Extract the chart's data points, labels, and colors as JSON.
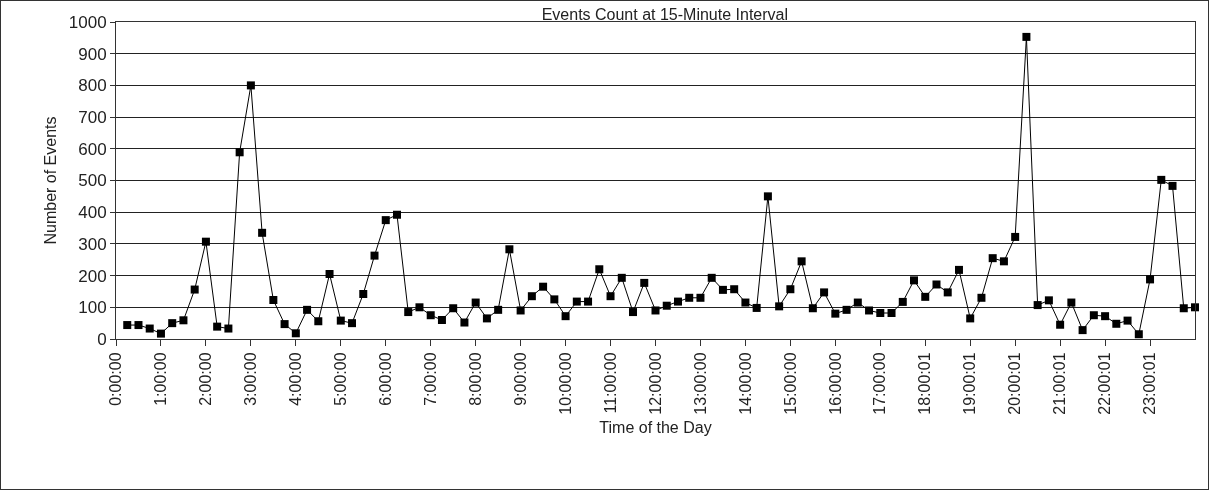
{
  "chart_data": {
    "type": "line",
    "title": "Events Count at 15-Minute Interval",
    "xlabel": "Time of the Day",
    "ylabel": "Number of Events",
    "categories": [
      "0:00:00",
      null,
      null,
      null,
      "1:00:00",
      null,
      null,
      null,
      "2:00:00",
      null,
      null,
      null,
      "3:00:00",
      null,
      null,
      null,
      "4:00:00",
      null,
      null,
      null,
      "5:00:00",
      null,
      null,
      null,
      "6:00:00",
      null,
      null,
      null,
      "7:00:00",
      null,
      null,
      null,
      "8:00:00",
      null,
      null,
      null,
      "9:00:00",
      null,
      null,
      null,
      "10:00:00",
      null,
      null,
      null,
      "11:00:00",
      null,
      null,
      null,
      "12:00:00",
      null,
      null,
      null,
      "13:00:00",
      null,
      null,
      null,
      "14:00:00",
      null,
      null,
      null,
      "15:00:00",
      null,
      null,
      null,
      "16:00:00",
      null,
      null,
      null,
      "17:00:00",
      null,
      null,
      null,
      "18:00:01",
      null,
      null,
      null,
      "19:00:01",
      null,
      null,
      null,
      "20:00:01",
      null,
      null,
      null,
      "21:00:01",
      null,
      null,
      null,
      "22:00:01",
      null,
      null,
      null,
      "23:00:01",
      null,
      null,
      null,
      null
    ],
    "values": [
      null,
      44,
      44,
      33,
      17,
      50,
      59,
      156,
      307,
      39,
      33,
      589,
      800,
      335,
      123,
      47,
      18,
      92,
      56,
      205,
      58,
      50,
      142,
      263,
      375,
      392,
      85,
      100,
      75,
      60,
      97,
      52,
      115,
      65,
      92,
      283,
      90,
      135,
      165,
      125,
      72,
      118,
      118,
      220,
      135,
      193,
      85,
      177,
      90,
      105,
      118,
      130,
      130,
      193,
      155,
      157,
      115,
      98,
      450,
      103,
      157,
      245,
      97,
      147,
      80,
      92,
      115,
      90,
      82,
      82,
      117,
      185,
      133,
      172,
      147,
      218,
      65,
      130,
      255,
      245,
      322,
      953,
      107,
      122,
      45,
      115,
      28,
      75,
      72,
      48,
      58,
      15,
      188,
      502,
      483,
      97,
      100
    ],
    "color": "#000000",
    "marker": "square",
    "line_style": "solid",
    "ylim": [
      0,
      1000
    ],
    "yticks": [
      0,
      100,
      200,
      300,
      400,
      500,
      600,
      700,
      800,
      900,
      1000
    ],
    "grid": "y"
  }
}
